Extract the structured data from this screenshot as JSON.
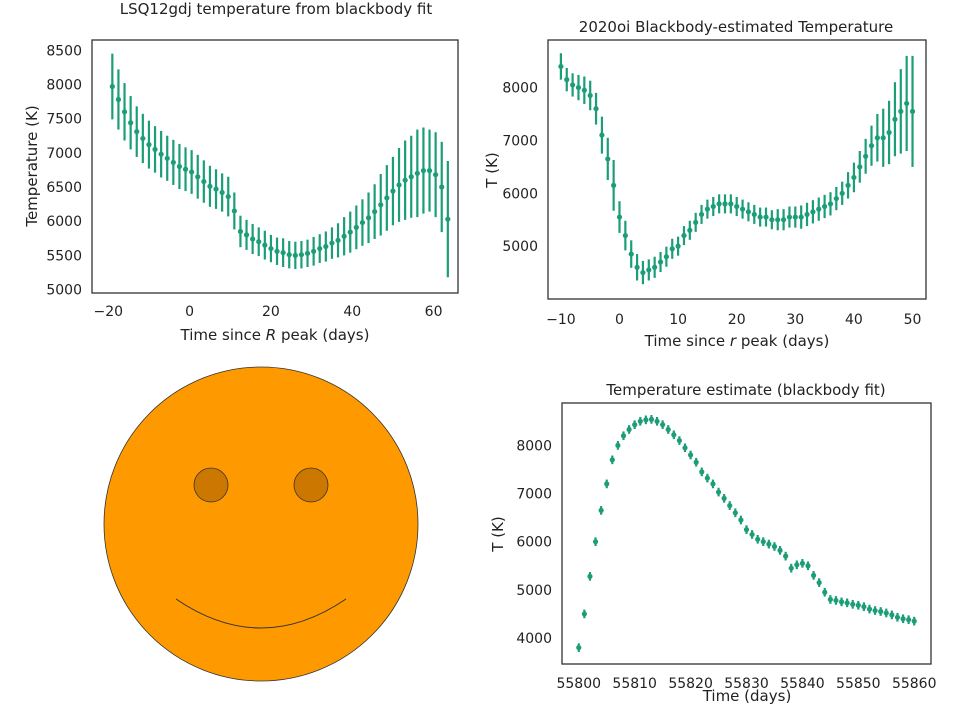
{
  "charts": [
    {
      "type": "scatter",
      "title": "LSQ12gdj temperature from blackbody fit",
      "xlabel_pre": "Time since ",
      "xlabel_var": "R",
      "xlabel_post": " peak (days)",
      "ylabel": "Temperature (K)",
      "xlim": [
        -24,
        66
      ],
      "ylim": [
        4950,
        8650
      ],
      "xticks": [
        -20,
        0,
        20,
        40,
        60
      ],
      "yticks": [
        5000,
        5500,
        6000,
        6500,
        7000,
        7500,
        8000,
        8500
      ],
      "color": "#1b9e77",
      "x": [
        -19,
        -17.5,
        -16,
        -14.5,
        -13,
        -11.5,
        -10,
        -8.5,
        -7,
        -5.5,
        -4,
        -2.5,
        -1,
        0.5,
        2,
        3.5,
        5,
        6.5,
        8,
        9.5,
        11,
        12.5,
        14,
        15.5,
        17,
        18.5,
        20,
        21.5,
        23,
        24.5,
        26,
        27.5,
        29,
        30.5,
        32,
        33.5,
        35,
        36.5,
        38,
        39.5,
        41,
        42.5,
        44,
        45.5,
        47,
        48.5,
        50,
        51.5,
        53,
        54.5,
        56,
        57.5,
        59,
        60.5,
        62,
        63.5
      ],
      "y": [
        7970,
        7780,
        7600,
        7440,
        7310,
        7210,
        7120,
        7050,
        6980,
        6920,
        6860,
        6800,
        6760,
        6720,
        6650,
        6580,
        6510,
        6470,
        6420,
        6360,
        6150,
        5850,
        5800,
        5740,
        5700,
        5650,
        5600,
        5560,
        5540,
        5510,
        5500,
        5510,
        5530,
        5560,
        5600,
        5630,
        5680,
        5720,
        5780,
        5840,
        5910,
        5980,
        6050,
        6140,
        6240,
        6340,
        6440,
        6530,
        6600,
        6650,
        6700,
        6740,
        6740,
        6680,
        6500,
        6030
      ],
      "yerr": [
        480,
        440,
        420,
        390,
        370,
        360,
        350,
        340,
        340,
        330,
        330,
        330,
        320,
        320,
        320,
        310,
        300,
        290,
        280,
        290,
        270,
        230,
        220,
        220,
        210,
        210,
        200,
        200,
        210,
        200,
        200,
        200,
        200,
        210,
        210,
        220,
        230,
        250,
        280,
        300,
        320,
        340,
        370,
        400,
        450,
        480,
        500,
        540,
        580,
        600,
        640,
        630,
        600,
        620,
        660,
        850
      ]
    },
    {
      "type": "scatter",
      "title": "2020oi Blackbody-estimated Temperature",
      "xlabel_pre": "Time since ",
      "xlabel_var": "r",
      "xlabel_post": " peak (days)",
      "ylabel": "T (K)",
      "xlim": [
        -12.2,
        52.3
      ],
      "ylim": [
        4000,
        8900
      ],
      "xticks": [
        -10,
        0,
        10,
        20,
        30,
        40,
        50
      ],
      "yticks": [
        5000,
        6000,
        7000,
        8000
      ],
      "color": "#1b9e77",
      "x": [
        -10,
        -9,
        -8,
        -7,
        -6,
        -5,
        -4,
        -3,
        -2,
        -1,
        0,
        1,
        2,
        3,
        4,
        5,
        6,
        7,
        8,
        9,
        10,
        11,
        12,
        13,
        14,
        15,
        16,
        17,
        18,
        19,
        20,
        21,
        22,
        23,
        24,
        25,
        26,
        27,
        28,
        29,
        30,
        31,
        32,
        33,
        34,
        35,
        36,
        37,
        38,
        39,
        40,
        41,
        42,
        43,
        44,
        45,
        46,
        47,
        48,
        49,
        50
      ],
      "y": [
        8400,
        8150,
        8050,
        8000,
        7950,
        7850,
        7600,
        7100,
        6650,
        6150,
        5550,
        5200,
        4850,
        4600,
        4500,
        4550,
        4600,
        4700,
        4800,
        4950,
        5000,
        5200,
        5300,
        5450,
        5600,
        5700,
        5750,
        5800,
        5800,
        5800,
        5750,
        5700,
        5650,
        5600,
        5550,
        5550,
        5500,
        5500,
        5500,
        5550,
        5550,
        5550,
        5600,
        5650,
        5700,
        5750,
        5800,
        5900,
        6000,
        6150,
        6300,
        6500,
        6700,
        6900,
        7050,
        7050,
        7150,
        7400,
        7550,
        7700,
        7550
      ],
      "yerr": [
        250,
        220,
        220,
        240,
        260,
        280,
        300,
        350,
        400,
        480,
        300,
        280,
        260,
        250,
        220,
        200,
        200,
        190,
        190,
        190,
        180,
        180,
        180,
        180,
        180,
        180,
        180,
        180,
        180,
        180,
        180,
        180,
        180,
        180,
        180,
        180,
        180,
        200,
        200,
        200,
        200,
        220,
        220,
        220,
        220,
        220,
        220,
        220,
        220,
        250,
        280,
        300,
        330,
        380,
        450,
        550,
        600,
        700,
        800,
        900,
        1050
      ]
    },
    {
      "type": "scatter",
      "title": "Temperature estimate (blackbody fit)",
      "xlabel": "Time (days)",
      "ylabel": "T (K)",
      "xlim": [
        55797,
        55863
      ],
      "ylim": [
        3460,
        8880
      ],
      "xticks": [
        55800,
        55810,
        55820,
        55830,
        55840,
        55850,
        55860
      ],
      "yticks": [
        4000,
        5000,
        6000,
        7000,
        8000
      ],
      "color": "#1b9e77",
      "x": [
        55800,
        55801,
        55802,
        55803,
        55804,
        55805,
        55806,
        55807,
        55808,
        55809,
        55810,
        55811,
        55812,
        55813,
        55814,
        55815,
        55816,
        55817,
        55818,
        55819,
        55820,
        55821,
        55822,
        55823,
        55824,
        55825,
        55826,
        55827,
        55828,
        55829,
        55830,
        55831,
        55832,
        55833,
        55834,
        55835,
        55836,
        55837,
        55838,
        55839,
        55840,
        55841,
        55842,
        55843,
        55844,
        55845,
        55846,
        55847,
        55848,
        55849,
        55850,
        55851,
        55852,
        55853,
        55854,
        55855,
        55856,
        55857,
        55858,
        55859,
        55860
      ],
      "y": [
        3800,
        4500,
        5280,
        6000,
        6650,
        7200,
        7700,
        8000,
        8200,
        8330,
        8430,
        8500,
        8530,
        8540,
        8500,
        8430,
        8330,
        8220,
        8100,
        7950,
        7800,
        7650,
        7450,
        7320,
        7200,
        7030,
        6900,
        6750,
        6600,
        6450,
        6250,
        6150,
        6050,
        6000,
        5950,
        5900,
        5820,
        5700,
        5450,
        5520,
        5550,
        5500,
        5300,
        5150,
        4950,
        4800,
        4780,
        4750,
        4730,
        4700,
        4680,
        4650,
        4600,
        4570,
        4550,
        4520,
        4480,
        4430,
        4400,
        4380,
        4350
      ]
    }
  ],
  "face": {
    "fill": "#ff9900",
    "eye_fill": "#cc7700",
    "stroke": "#333333"
  }
}
